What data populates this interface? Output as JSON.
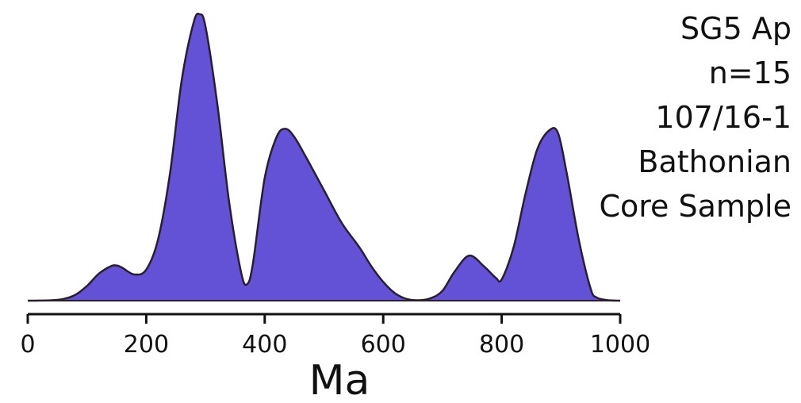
{
  "chart_data": {
    "type": "area",
    "subtype": "kernel-density-estimate",
    "title_lines": [
      "SG5 Ap",
      "n=15",
      "107/16-1",
      "Bathonian",
      "Core Sample"
    ],
    "xlabel": "Ma",
    "ylabel": "",
    "xlim": [
      0,
      1000
    ],
    "xticks": [
      0,
      200,
      400,
      600,
      800,
      1000
    ],
    "xtick_labels": [
      "0",
      "200",
      "400",
      "600",
      "800",
      "1000"
    ],
    "y_axis_shown": false,
    "grid": false,
    "legend": "none",
    "fill_color": "#6352d6",
    "outline_color": "#2b1e2e",
    "axis_color": "#111111",
    "series": [
      {
        "x": [
          0,
          20,
          40,
          60,
          80,
          100,
          120,
          140,
          150,
          160,
          180,
          200,
          220,
          240,
          260,
          280,
          290,
          300,
          320,
          340,
          360,
          370,
          380,
          400,
          420,
          435,
          450,
          470,
          500,
          530,
          560,
          580,
          600,
          620,
          640,
          660,
          680,
          700,
          720,
          745,
          770,
          790,
          800,
          820,
          840,
          860,
          880,
          895,
          910,
          930,
          950,
          960,
          980,
          1000
        ],
        "y": [
          0,
          0.001,
          0.005,
          0.02,
          0.07,
          0.18,
          0.33,
          0.42,
          0.43,
          0.4,
          0.32,
          0.38,
          0.75,
          1.55,
          2.7,
          3.4,
          3.5,
          3.35,
          2.4,
          1.2,
          0.35,
          0.2,
          0.45,
          1.5,
          2.0,
          2.1,
          2.0,
          1.75,
          1.35,
          0.95,
          0.65,
          0.42,
          0.23,
          0.09,
          0.02,
          0.005,
          0.03,
          0.12,
          0.35,
          0.55,
          0.42,
          0.28,
          0.26,
          0.65,
          1.3,
          1.85,
          2.08,
          2.05,
          1.55,
          0.75,
          0.15,
          0.04,
          0.005,
          0
        ]
      }
    ]
  }
}
